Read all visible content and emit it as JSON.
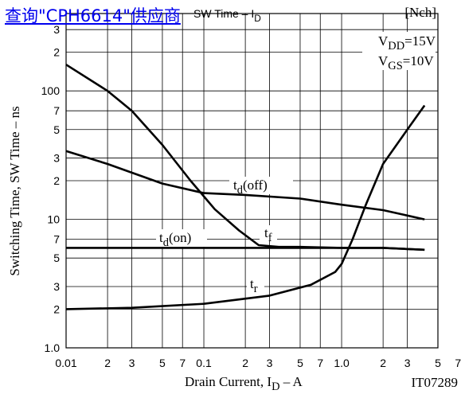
{
  "link": "查询\"CPH6614\"供应商",
  "chart_data": {
    "type": "line",
    "title": [
      "SW Time  –  I",
      "D"
    ],
    "xlabel": [
      "Drain Current, I",
      "D",
      "  –  A"
    ],
    "ylabel": [
      "Switching Time, SW Time  –  ns"
    ],
    "annotations": [
      [
        "[Nch]"
      ],
      [
        "V",
        "DD",
        "=15V"
      ],
      [
        "V",
        "GS",
        "=10V"
      ]
    ],
    "figure_id": "IT07289",
    "xscale": "log",
    "yscale": "log",
    "grid": true,
    "xlim": [
      0.01,
      5
    ],
    "ylim": [
      1,
      400
    ],
    "xticks": [
      0.01,
      {
        "value": 0.02,
        "label": "2"
      },
      {
        "value": 0.03,
        "label": "3"
      },
      {
        "value": 0.05,
        "label": "5"
      },
      {
        "value": 0.07,
        "label": "7"
      },
      0.1,
      {
        "value": 0.2,
        "label": "2"
      },
      {
        "value": 0.3,
        "label": "3"
      },
      {
        "value": 0.5,
        "label": "5"
      },
      {
        "value": 0.7,
        "label": "7"
      },
      {
        "value": 1,
        "label": "1.0"
      },
      2,
      3,
      5,
      7
    ],
    "yticks": [
      {
        "value": 1,
        "label": "1.0"
      },
      2,
      3,
      5,
      7,
      10,
      {
        "value": 20,
        "label": "2"
      },
      {
        "value": 30,
        "label": "3"
      },
      {
        "value": 50,
        "label": "5"
      },
      {
        "value": 70,
        "label": "7"
      },
      100,
      {
        "value": 200,
        "label": "2"
      },
      {
        "value": 300,
        "label": "3"
      }
    ],
    "series": [
      {
        "name": [
          "t",
          "f"
        ],
        "color": "#000000",
        "x": [
          0.01,
          0.02,
          0.03,
          0.05,
          0.08,
          0.12,
          0.18,
          0.25,
          0.35,
          0.5,
          1,
          2,
          4
        ],
        "values": [
          160,
          100,
          70,
          38,
          20,
          12,
          8.2,
          6.3,
          6.1,
          6.1,
          6.0,
          6.0,
          5.8
        ]
      },
      {
        "name": [
          "t",
          "d",
          "(on)"
        ],
        "color": "#000000",
        "x": [
          0.01,
          0.1,
          1,
          2,
          4
        ],
        "values": [
          6.0,
          6.0,
          6.0,
          6.0,
          5.8
        ]
      },
      {
        "name": [
          "t",
          "d",
          "(off)"
        ],
        "color": "#000000",
        "x": [
          0.01,
          0.02,
          0.05,
          0.1,
          0.2,
          0.5,
          1,
          2,
          4
        ],
        "values": [
          34,
          27,
          19,
          16,
          15.5,
          14.5,
          13,
          11.8,
          10
        ]
      },
      {
        "name": [
          "t",
          "r"
        ],
        "color": "#000000",
        "x": [
          0.01,
          0.03,
          0.1,
          0.3,
          0.6,
          0.9,
          1,
          1.2,
          1.5,
          2,
          3,
          4
        ],
        "values": [
          2.0,
          2.05,
          2.2,
          2.55,
          3.1,
          3.9,
          4.5,
          7,
          13,
          27,
          50,
          77
        ]
      }
    ]
  }
}
